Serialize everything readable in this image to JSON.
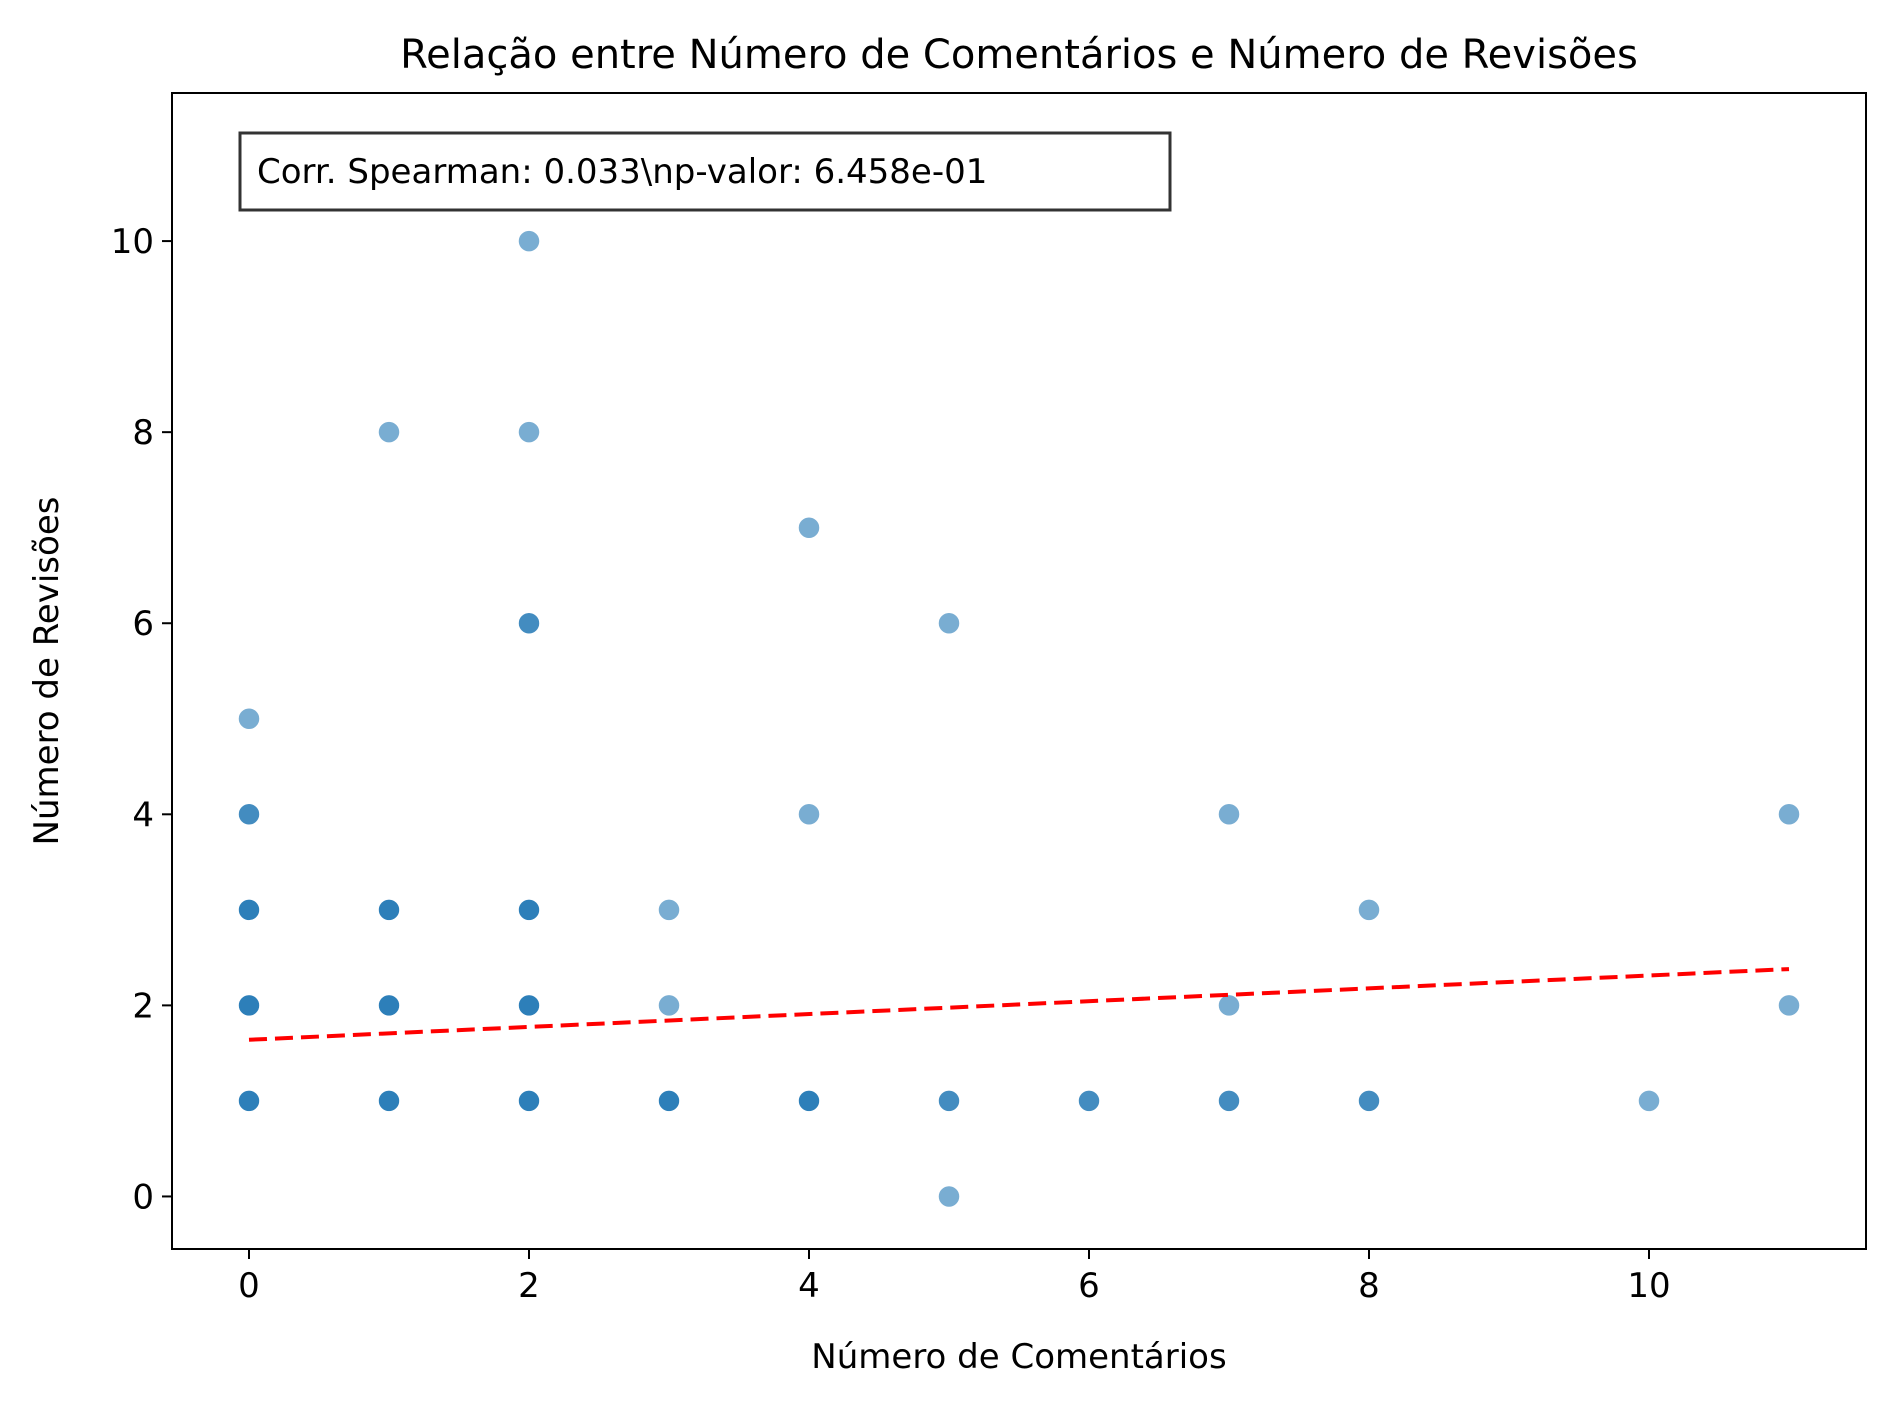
{
  "chart_data": {
    "type": "scatter",
    "title": "Relação entre Número de Comentários e Número de Revisões",
    "xlabel": "Número de Comentários",
    "ylabel": "Número de Revisões",
    "xlim": [
      -0.55,
      11.55
    ],
    "ylim": [
      -0.55,
      11.55
    ],
    "xticks": [
      0,
      2,
      4,
      6,
      8,
      10
    ],
    "yticks": [
      0,
      2,
      4,
      6,
      8,
      10
    ],
    "grid": false,
    "point_color": "#1f77b4",
    "point_alpha": 0.6,
    "points": [
      {
        "x": 0,
        "y": 5
      },
      {
        "x": 0,
        "y": 4
      },
      {
        "x": 0,
        "y": 4
      },
      {
        "x": 0,
        "y": 3
      },
      {
        "x": 0,
        "y": 3
      },
      {
        "x": 0,
        "y": 3
      },
      {
        "x": 0,
        "y": 2
      },
      {
        "x": 0,
        "y": 2
      },
      {
        "x": 0,
        "y": 2
      },
      {
        "x": 0,
        "y": 1
      },
      {
        "x": 0,
        "y": 1
      },
      {
        "x": 0,
        "y": 1
      },
      {
        "x": 1,
        "y": 11
      },
      {
        "x": 1,
        "y": 8
      },
      {
        "x": 1,
        "y": 3
      },
      {
        "x": 1,
        "y": 3
      },
      {
        "x": 1,
        "y": 3
      },
      {
        "x": 1,
        "y": 2
      },
      {
        "x": 1,
        "y": 2
      },
      {
        "x": 1,
        "y": 2
      },
      {
        "x": 1,
        "y": 1
      },
      {
        "x": 1,
        "y": 1
      },
      {
        "x": 1,
        "y": 1
      },
      {
        "x": 2,
        "y": 11
      },
      {
        "x": 2,
        "y": 10
      },
      {
        "x": 2,
        "y": 8
      },
      {
        "x": 2,
        "y": 6
      },
      {
        "x": 2,
        "y": 6
      },
      {
        "x": 2,
        "y": 3
      },
      {
        "x": 2,
        "y": 3
      },
      {
        "x": 2,
        "y": 3
      },
      {
        "x": 2,
        "y": 2
      },
      {
        "x": 2,
        "y": 2
      },
      {
        "x": 2,
        "y": 2
      },
      {
        "x": 2,
        "y": 1
      },
      {
        "x": 2,
        "y": 1
      },
      {
        "x": 2,
        "y": 1
      },
      {
        "x": 3,
        "y": 3
      },
      {
        "x": 3,
        "y": 2
      },
      {
        "x": 3,
        "y": 1
      },
      {
        "x": 3,
        "y": 1
      },
      {
        "x": 3,
        "y": 1
      },
      {
        "x": 4,
        "y": 7
      },
      {
        "x": 4,
        "y": 4
      },
      {
        "x": 4,
        "y": 1
      },
      {
        "x": 4,
        "y": 1
      },
      {
        "x": 4,
        "y": 1
      },
      {
        "x": 5,
        "y": 6
      },
      {
        "x": 5,
        "y": 1
      },
      {
        "x": 5,
        "y": 1
      },
      {
        "x": 5,
        "y": 0
      },
      {
        "x": 6,
        "y": 1
      },
      {
        "x": 6,
        "y": 1
      },
      {
        "x": 7,
        "y": 4
      },
      {
        "x": 7,
        "y": 2
      },
      {
        "x": 7,
        "y": 1
      },
      {
        "x": 7,
        "y": 1
      },
      {
        "x": 8,
        "y": 3
      },
      {
        "x": 8,
        "y": 1
      },
      {
        "x": 8,
        "y": 1
      },
      {
        "x": 10,
        "y": 1
      },
      {
        "x": 11,
        "y": 4
      },
      {
        "x": 11,
        "y": 2
      }
    ],
    "trend_line": {
      "color": "#ff0000",
      "style": "dashed",
      "x": [
        0,
        11
      ],
      "y": [
        1.64,
        2.38
      ]
    },
    "annotation": {
      "text": "Corr. Spearman: 0.033\\np-valor: 6.458e-01",
      "placement": "top-left"
    }
  }
}
